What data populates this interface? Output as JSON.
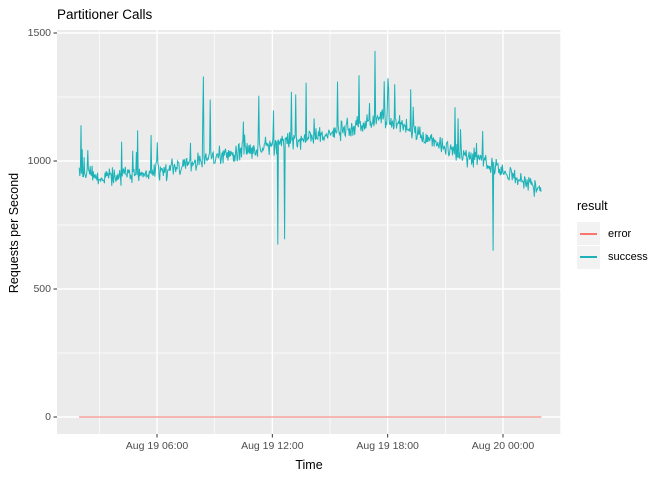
{
  "chart_data": {
    "type": "line",
    "title": "Partitioner Calls",
    "xlabel": "Time",
    "ylabel": "Requests per Second",
    "x_axis": {
      "unit": "hours since Aug 19 00:00",
      "start_t": 1.95,
      "end_t": 26.0,
      "ticks": [
        {
          "t": 6,
          "label": "Aug 19 06:00"
        },
        {
          "t": 12,
          "label": "Aug 19 12:00"
        },
        {
          "t": 18,
          "label": "Aug 19 18:00"
        },
        {
          "t": 24,
          "label": "Aug 20 00:00"
        }
      ],
      "minor_t": [
        3,
        9,
        15,
        21,
        27
      ]
    },
    "y_axis": {
      "range": [
        0,
        1500
      ],
      "ticks": [
        0,
        500,
        1000,
        1500
      ],
      "minor": [
        250,
        750,
        1250
      ]
    },
    "panel": {
      "bg": "#EBEBEB",
      "grid_major_color": "#FFFFFF",
      "grid_minor_color": "#FFFFFF",
      "tick_mark_color": "#333333"
    },
    "legend": {
      "title": "result",
      "position": "right"
    },
    "series": [
      {
        "name": "error",
        "color": "#F8766D",
        "shape": "constant",
        "value": 0
      },
      {
        "name": "success",
        "color": "#1BB3B8",
        "shape": "noisy-line",
        "noise_amp": 52,
        "trend": [
          [
            1.95,
            960
          ],
          [
            3,
            935
          ],
          [
            4,
            940
          ],
          [
            5,
            948
          ],
          [
            6,
            958
          ],
          [
            7,
            978
          ],
          [
            8,
            998
          ],
          [
            9,
            1012
          ],
          [
            10,
            1028
          ],
          [
            11,
            1046
          ],
          [
            12,
            1065
          ],
          [
            13,
            1080
          ],
          [
            14,
            1095
          ],
          [
            15,
            1108
          ],
          [
            16,
            1128
          ],
          [
            17,
            1152
          ],
          [
            17.6,
            1168
          ],
          [
            18,
            1158
          ],
          [
            19,
            1128
          ],
          [
            20,
            1092
          ],
          [
            21,
            1052
          ],
          [
            22,
            1022
          ],
          [
            23,
            996
          ],
          [
            24,
            958
          ],
          [
            25,
            922
          ],
          [
            26,
            892
          ]
        ],
        "spikes": [
          [
            2.05,
            1140
          ],
          [
            8.4,
            1330
          ],
          [
            8.75,
            1240
          ],
          [
            11.3,
            1255
          ],
          [
            13.0,
            1270
          ],
          [
            15.4,
            1310
          ],
          [
            16.5,
            1335
          ],
          [
            17.35,
            1430
          ],
          [
            18.35,
            1300
          ],
          [
            19.2,
            1280
          ],
          [
            21.5,
            1210
          ]
        ],
        "dips": [
          [
            12.3,
            674
          ],
          [
            12.65,
            694
          ],
          [
            23.5,
            650
          ]
        ]
      }
    ]
  }
}
